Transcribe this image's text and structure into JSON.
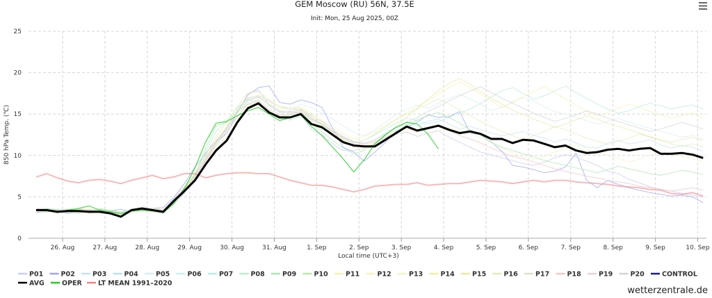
{
  "chart_data": {
    "type": "line",
    "title": "GEM Moscow (RU) 56N, 37.5E",
    "subtitle": "Init: Mon, 25 Aug 2025, 00Z",
    "xlabel": "Local time (UTC+3)",
    "ylabel": "850 hPa Temp. (℃)",
    "ylim": [
      0,
      25
    ],
    "yticks": [
      "0",
      "5",
      "10",
      "15",
      "20",
      "25"
    ],
    "xticks": [
      "26. Aug",
      "27. Aug",
      "28. Aug",
      "29. Aug",
      "30. Aug",
      "31. Aug",
      "1. Sep",
      "2. Sep",
      "3. Sep",
      "4. Sep",
      "5. Sep",
      "6. Sep",
      "7. Sep",
      "8. Sep",
      "9. Sep",
      "10. Sep"
    ],
    "x_unit": "hours since 25 Aug 2025 03:00 local (00Z init), 6-hourly steps",
    "grid": true,
    "legend_position": "bottom",
    "series": [
      {
        "name": "AVG",
        "color": "#000000",
        "values": [
          3.4,
          3.4,
          3.2,
          3.3,
          3.3,
          3.2,
          3.2,
          3.0,
          2.6,
          3.4,
          3.6,
          3.4,
          3.2,
          4.5,
          5.7,
          7.0,
          8.9,
          10.6,
          11.8,
          14.0,
          15.7,
          16.3,
          15.2,
          14.6,
          14.6,
          15.0,
          13.8,
          13.4,
          12.5,
          11.6,
          11.2,
          11.1,
          11.1,
          11.9,
          12.7,
          13.5,
          13.0,
          13.3,
          13.6,
          13.1,
          12.7,
          12.9,
          12.6,
          12.0,
          12.0,
          11.5,
          11.9,
          11.8,
          11.4,
          11.0,
          11.2,
          10.6,
          10.3,
          10.4,
          10.7,
          10.8,
          10.6,
          10.8,
          10.9,
          10.2,
          10.2,
          10.3,
          10.1,
          9.7
        ]
      },
      {
        "name": "LT MEAN 1991-2020",
        "color": "#f08080",
        "values": [
          7.4,
          7.8,
          7.3,
          6.9,
          6.7,
          7.0,
          7.1,
          6.9,
          6.6,
          7.0,
          7.3,
          7.6,
          7.2,
          7.4,
          7.8,
          7.8,
          7.3,
          7.6,
          7.8,
          7.9,
          7.9,
          7.8,
          7.8,
          7.4,
          7.0,
          6.7,
          6.4,
          6.4,
          6.2,
          5.9,
          5.6,
          5.9,
          6.3,
          6.4,
          6.5,
          6.5,
          6.7,
          6.4,
          6.5,
          6.6,
          6.6,
          6.8,
          7.0,
          6.9,
          6.8,
          6.6,
          6.8,
          7.0,
          6.8,
          7.0,
          7.0,
          6.8,
          6.7,
          6.6,
          6.5,
          6.3,
          6.2,
          6.1,
          5.9,
          5.8,
          5.4,
          5.3,
          5.5,
          5.1
        ]
      },
      {
        "name": "OPER",
        "color": "#22cc22",
        "values": [
          3.3,
          3.5,
          3.1,
          3.4,
          3.6,
          3.9,
          3.4,
          3.2,
          3.0,
          3.3,
          3.4,
          3.3,
          3.1,
          4.2,
          6.0,
          8.5,
          11.6,
          13.9,
          14.1,
          14.8,
          15.4,
          15.8,
          15.0,
          14.2,
          14.6,
          14.9,
          13.5,
          12.4,
          11.0,
          9.6,
          8.0,
          9.5,
          11.4,
          12.5,
          13.4,
          14.0,
          13.8,
          12.6,
          10.8
        ]
      },
      {
        "name": "P02",
        "color": "#9aa6f0",
        "values": [
          3.1,
          3.2,
          3.3,
          3.0,
          3.2,
          3.4,
          3.3,
          3.3,
          3.5,
          3.2,
          3.4,
          3.6,
          3.7,
          4.9,
          6.6,
          8.6,
          10.2,
          11.8,
          12.6,
          15.2,
          17.3,
          18.2,
          18.4,
          16.4,
          16.2,
          16.7,
          16.4,
          15.8,
          13.3,
          11.0,
          10.4,
          9.3,
          10.4,
          11.6,
          12.9,
          13.4,
          14.0,
          14.9,
          14.6,
          14.7,
          15.3,
          12.7,
          12.5,
          11.6,
          10.5,
          8.8,
          8.6,
          8.3,
          7.9,
          8.1,
          8.6,
          10.3,
          7.0,
          6.1,
          7.0,
          6.5,
          6.1,
          5.8,
          5.5,
          5.3,
          5.1,
          5.2,
          5.0,
          4.3
        ]
      },
      {
        "name": "P01",
        "color": "#c8cbf2",
        "values": [
          3.6,
          3.6,
          3.2,
          3.1,
          3.3,
          3.3,
          3.5,
          3.1,
          2.9,
          3.5,
          3.7,
          3.5,
          3.4,
          4.8,
          6.2,
          7.6,
          9.8,
          11.6,
          13.4,
          15.2,
          17.4,
          17.9,
          16.1,
          15.2,
          15.3,
          15.1,
          13.1,
          12.5,
          11.4,
          10.6,
          10.6,
          10.9,
          11.4,
          12.2,
          12.6,
          12.8,
          12.3,
          12.7,
          13.0,
          12.2,
          11.6,
          11.0,
          10.4,
          10.1,
          9.7,
          9.4,
          9.0,
          8.8,
          9.2,
          9.7,
          10.1,
          9.8,
          9.3,
          8.8,
          8.1,
          7.8,
          7.1,
          6.7,
          6.2,
          5.9,
          5.7,
          5.4,
          5.2,
          5.0
        ]
      },
      {
        "name": "P03",
        "color": "#c6e0f5",
        "values": [
          3.0,
          3.3,
          3.5,
          3.4,
          3.1,
          3.2,
          3.4,
          3.2,
          3.1,
          3.3,
          3.7,
          3.6,
          3.3,
          4.3,
          5.4,
          7.4,
          9.3,
          11.4,
          13.1,
          15.6,
          16.9,
          17.2,
          16.6,
          15.9,
          15.6,
          15.5,
          14.8,
          14.1,
          13.2,
          12.2,
          11.6,
          11.5,
          11.9,
          12.6,
          13.3,
          13.8,
          13.6,
          14.1,
          14.4,
          13.8,
          13.2,
          13.5,
          13.1,
          12.7,
          12.4,
          12.6,
          12.9,
          12.4,
          12.1,
          11.6,
          12.0,
          11.5,
          11.0,
          10.9,
          11.5,
          11.8,
          11.4,
          11.6,
          11.9,
          11.3,
          10.9,
          11.2,
          11.0,
          10.5
        ]
      },
      {
        "name": "P05",
        "color": "#d9ecf7",
        "values": [
          3.2,
          3.1,
          3.4,
          3.6,
          3.5,
          3.3,
          3.2,
          3.0,
          2.8,
          3.1,
          3.3,
          3.4,
          3.2,
          4.7,
          6.0,
          7.2,
          9.1,
          10.8,
          12.7,
          14.6,
          16.4,
          16.7,
          15.8,
          15.0,
          15.4,
          16.2,
          15.8,
          15.1,
          14.4,
          13.6,
          12.8,
          12.4,
          13.1,
          14.0,
          14.9,
          15.6,
          16.1,
          15.7,
          16.3,
          16.9,
          17.4,
          16.8,
          16.2,
          15.4,
          15.8,
          16.5,
          17.0,
          16.6,
          15.9,
          15.3,
          15.0,
          14.6,
          14.2,
          13.8,
          14.1,
          14.5,
          14.0,
          13.6,
          13.3,
          12.9,
          12.6,
          12.2,
          12.4,
          12.0
        ]
      },
      {
        "name": "P07",
        "color": "#b7ece0",
        "values": [
          3.5,
          3.3,
          3.1,
          3.2,
          3.4,
          3.5,
          3.3,
          3.1,
          2.9,
          3.2,
          3.5,
          3.3,
          3.1,
          4.4,
          5.9,
          7.8,
          10.4,
          12.9,
          14.2,
          15.8,
          16.8,
          16.4,
          15.3,
          14.7,
          14.9,
          15.2,
          14.3,
          13.6,
          12.8,
          11.9,
          11.4,
          11.8,
          12.5,
          13.2,
          13.9,
          14.5,
          14.2,
          13.8,
          14.1,
          14.6,
          15.1,
          15.6,
          16.3,
          17.1,
          17.8,
          18.2,
          17.5,
          16.8,
          17.2,
          17.8,
          18.4,
          17.6,
          16.9,
          16.2,
          15.6,
          15.1,
          15.4,
          15.9,
          16.3,
          16.0,
          15.6,
          15.9,
          16.1,
          15.6
        ]
      },
      {
        "name": "P09",
        "color": "#a8e8b0",
        "values": [
          3.4,
          3.6,
          3.5,
          3.2,
          3.0,
          3.3,
          3.6,
          3.4,
          3.2,
          3.4,
          3.5,
          3.4,
          3.0,
          4.1,
          5.5,
          7.6,
          10.8,
          13.6,
          14.0,
          15.3,
          16.2,
          16.1,
          15.2,
          14.4,
          14.3,
          14.7,
          13.9,
          12.9,
          11.8,
          10.9,
          10.2,
          10.6,
          11.5,
          12.4,
          13.0,
          13.6,
          14.3,
          14.8,
          15.2,
          14.6,
          13.9,
          13.1,
          12.4,
          11.6,
          11.0,
          10.6,
          10.2,
          9.8,
          9.4,
          9.1,
          8.8,
          8.5,
          8.2,
          7.9,
          8.3,
          8.7,
          8.4,
          8.1,
          7.8,
          7.6,
          7.9,
          8.2,
          8.0,
          7.7
        ]
      },
      {
        "name": "P11",
        "color": "#f4f2b0",
        "values": [
          3.1,
          3.4,
          3.2,
          3.5,
          3.3,
          3.1,
          3.3,
          3.2,
          3.0,
          3.3,
          3.6,
          3.5,
          3.2,
          4.5,
          5.9,
          7.4,
          9.6,
          11.9,
          13.5,
          15.4,
          17.0,
          17.3,
          16.5,
          15.7,
          15.5,
          15.9,
          15.1,
          14.2,
          13.4,
          12.6,
          12.0,
          12.3,
          12.9,
          13.6,
          14.4,
          15.2,
          15.9,
          16.6,
          17.4,
          18.2,
          18.9,
          18.2,
          17.4,
          16.6,
          15.8,
          16.4,
          17.1,
          17.7,
          18.3,
          17.6,
          16.8,
          16.1,
          15.3,
          14.8,
          15.2,
          15.7,
          16.2,
          15.8,
          15.3,
          14.9,
          14.5,
          14.8,
          15.1,
          14.6
        ]
      },
      {
        "name": "P13",
        "color": "#f1f4c4",
        "values": [
          3.3,
          3.2,
          3.0,
          3.3,
          3.5,
          3.6,
          3.4,
          3.1,
          2.7,
          3.2,
          3.4,
          3.2,
          3.1,
          4.3,
          5.6,
          7.1,
          9.0,
          10.9,
          12.2,
          14.3,
          15.9,
          16.5,
          15.6,
          14.8,
          14.7,
          15.1,
          14.2,
          13.5,
          12.6,
          11.7,
          11.0,
          10.7,
          11.2,
          11.8,
          12.5,
          13.1,
          12.8,
          12.4,
          12.9,
          13.4,
          13.0,
          12.6,
          12.1,
          11.5,
          10.9,
          10.3,
          9.8,
          9.5,
          9.9,
          10.4,
          10.9,
          11.3,
          10.8,
          10.4,
          10.0,
          9.6,
          9.2,
          9.6,
          10.1,
          10.5,
          10.2,
          9.9,
          9.6,
          9.3
        ]
      },
      {
        "name": "P15",
        "color": "#ece8a6",
        "values": [
          3.2,
          3.3,
          3.4,
          3.1,
          3.2,
          3.4,
          3.1,
          3.0,
          2.8,
          3.1,
          3.5,
          3.6,
          3.5,
          4.6,
          6.1,
          7.9,
          10.0,
          12.3,
          14.0,
          15.9,
          17.6,
          17.7,
          16.7,
          15.9,
          15.8,
          15.7,
          14.9,
          14.0,
          12.9,
          11.8,
          11.2,
          11.0,
          11.6,
          12.5,
          13.5,
          14.6,
          15.7,
          16.8,
          17.8,
          18.7,
          19.3,
          18.6,
          17.7,
          16.9,
          16.2,
          15.5,
          14.9,
          14.4,
          13.9,
          13.4,
          13.8,
          14.3,
          14.8,
          14.4,
          13.9,
          13.5,
          13.1,
          12.7,
          12.3,
          11.9,
          11.6,
          11.9,
          12.2,
          11.8
        ]
      },
      {
        "name": "P16",
        "color": "#e0ecb8",
        "values": [
          3.4,
          3.2,
          3.3,
          3.5,
          3.2,
          3.0,
          3.2,
          3.3,
          3.1,
          3.2,
          3.3,
          3.5,
          3.3,
          4.4,
          5.8,
          7.3,
          9.4,
          11.5,
          13.2,
          15.1,
          16.6,
          17.0,
          16.0,
          15.3,
          15.1,
          15.4,
          14.5,
          13.7,
          12.8,
          12.0,
          11.5,
          11.8,
          12.6,
          13.5,
          14.3,
          15.0,
          15.6,
          16.2,
          16.8,
          16.2,
          15.5,
          14.8,
          14.1,
          13.5,
          12.9,
          12.4,
          11.9,
          12.4,
          12.9,
          13.5,
          13.1,
          12.6,
          12.1,
          11.7,
          11.3,
          11.7,
          12.1,
          12.6,
          12.2,
          11.8,
          11.4,
          11.1,
          11.4,
          11.0
        ]
      },
      {
        "name": "P18",
        "color": "#f0c6c6",
        "values": [
          3.6,
          3.4,
          3.2,
          3.4,
          3.6,
          3.4,
          3.2,
          3.1,
          2.9,
          3.4,
          3.5,
          3.3,
          3.2,
          4.6,
          6.0,
          7.5,
          9.3,
          11.2,
          12.9,
          14.7,
          16.2,
          16.6,
          15.5,
          14.9,
          15.0,
          15.3,
          14.4,
          13.8,
          12.9,
          12.1,
          11.6,
          11.3,
          11.7,
          12.2,
          12.8,
          13.3,
          12.9,
          13.2,
          13.5,
          13.0,
          12.4,
          12.0,
          11.5,
          10.9,
          10.4,
          9.9,
          9.6,
          9.2,
          8.8,
          8.4,
          8.1,
          7.8,
          7.5,
          7.3,
          7.0,
          6.8,
          6.6,
          6.3,
          6.1,
          5.9,
          5.7,
          5.9,
          6.1,
          5.8
        ]
      },
      {
        "name": "P20",
        "color": "#d3d3d3",
        "values": [
          3.1,
          3.3,
          3.4,
          3.2,
          3.1,
          3.3,
          3.5,
          3.3,
          3.0,
          3.3,
          3.4,
          3.2,
          3.0,
          4.2,
          5.5,
          7.2,
          9.5,
          11.7,
          13.3,
          15.3,
          16.7,
          17.1,
          16.2,
          15.4,
          15.2,
          15.6,
          14.6,
          13.8,
          13.0,
          12.3,
          11.7,
          11.4,
          11.9,
          12.7,
          13.4,
          14.0,
          14.6,
          15.3,
          15.9,
          16.6,
          17.2,
          17.8,
          18.3,
          17.6,
          16.9,
          16.3,
          15.7,
          15.1,
          14.6,
          14.1,
          14.5,
          14.9,
          15.4,
          15.0,
          14.5,
          14.1,
          13.7,
          13.3,
          12.9,
          13.2,
          13.6,
          14.0,
          13.6,
          13.2
        ]
      }
    ]
  },
  "legend": [
    {
      "label": "P01",
      "color": "#c8cbf2"
    },
    {
      "label": "P02",
      "color": "#9aa6f0"
    },
    {
      "label": "P03",
      "color": "#c6e0f5"
    },
    {
      "label": "P04",
      "color": "#bfdff2"
    },
    {
      "label": "P05",
      "color": "#d9ecf7"
    },
    {
      "label": "P06",
      "color": "#cfeef0"
    },
    {
      "label": "P07",
      "color": "#b7ece0"
    },
    {
      "label": "P08",
      "color": "#b9ecc8"
    },
    {
      "label": "P09",
      "color": "#a8e8b0"
    },
    {
      "label": "P10",
      "color": "#b6eea4"
    },
    {
      "label": "P11",
      "color": "#f4f2b0"
    },
    {
      "label": "P12",
      "color": "#f6f3bc"
    },
    {
      "label": "P13",
      "color": "#f1f4c4"
    },
    {
      "label": "P14",
      "color": "#eef0a0"
    },
    {
      "label": "P15",
      "color": "#ece8a6"
    },
    {
      "label": "P16",
      "color": "#e0ecb8"
    },
    {
      "label": "P17",
      "color": "#dfe0c8"
    },
    {
      "label": "P18",
      "color": "#f0c6c6"
    },
    {
      "label": "P19",
      "color": "#e6d0dc"
    },
    {
      "label": "P20",
      "color": "#d3d3d3"
    },
    {
      "label": "CONTROL",
      "color": "#1a1a8c"
    },
    {
      "label": "AVG",
      "color": "#000000"
    },
    {
      "label": "OPER",
      "color": "#22cc22"
    },
    {
      "label": "LT MEAN 1991–2020",
      "color": "#f08080"
    }
  ],
  "credit": "wetterzentrale.de",
  "menu_icon": "hamburger-menu-icon"
}
